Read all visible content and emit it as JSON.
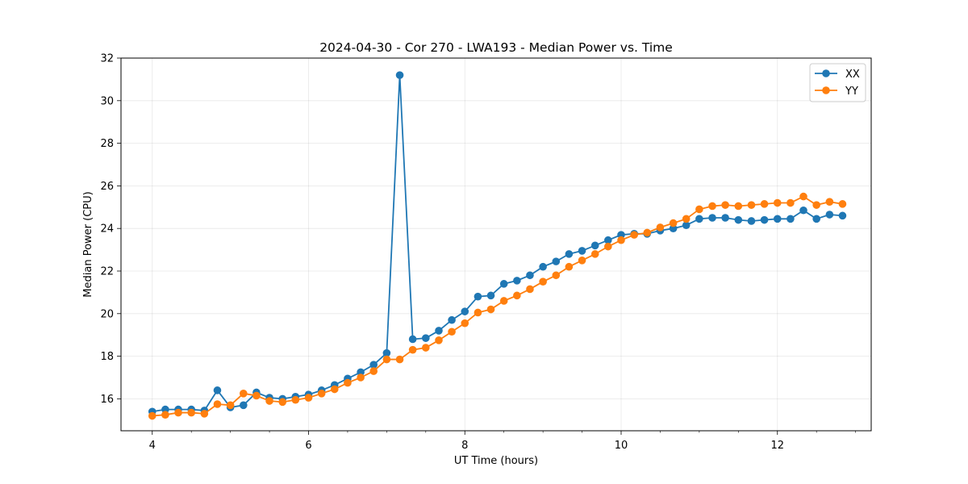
{
  "chart_data": {
    "type": "line",
    "title": "2024-04-30 - Cor 270 - LWA193 - Median Power vs. Time",
    "xlabel": "UT Time (hours)",
    "ylabel": "Median Power (CPU)",
    "xlim": [
      3.6,
      13.2
    ],
    "ylim": [
      14.5,
      32
    ],
    "xticks": [
      4,
      6,
      8,
      10,
      12
    ],
    "xtick_labels": [
      "4",
      "6",
      "8",
      "10",
      "12"
    ],
    "xminor_step": 0.5,
    "yticks": [
      16,
      18,
      20,
      22,
      24,
      26,
      28,
      30,
      32
    ],
    "ytick_labels": [
      "16",
      "18",
      "20",
      "22",
      "24",
      "26",
      "28",
      "30",
      "32"
    ],
    "grid": true,
    "legend_position": "top-right",
    "x": [
      4.0,
      4.167,
      4.333,
      4.5,
      4.667,
      4.833,
      5.0,
      5.167,
      5.333,
      5.5,
      5.667,
      5.833,
      6.0,
      6.167,
      6.333,
      6.5,
      6.667,
      6.833,
      7.0,
      7.167,
      7.333,
      7.5,
      7.667,
      7.833,
      8.0,
      8.167,
      8.333,
      8.5,
      8.667,
      8.833,
      9.0,
      9.167,
      9.333,
      9.5,
      9.667,
      9.833,
      10.0,
      10.167,
      10.333,
      10.5,
      10.667,
      10.833,
      11.0,
      11.167,
      11.333,
      11.5,
      11.667,
      11.833,
      12.0,
      12.167,
      12.333,
      12.5,
      12.667,
      12.833
    ],
    "series": [
      {
        "name": "XX",
        "color": "#1f77b4",
        "values": [
          15.4,
          15.5,
          15.5,
          15.5,
          15.45,
          16.4,
          15.6,
          15.7,
          16.3,
          16.05,
          16.0,
          16.1,
          16.2,
          16.4,
          16.65,
          16.95,
          17.25,
          17.6,
          18.15,
          31.2,
          18.8,
          18.85,
          19.2,
          19.7,
          20.1,
          20.8,
          20.85,
          21.4,
          21.55,
          21.8,
          22.2,
          22.45,
          22.8,
          22.95,
          23.2,
          23.45,
          23.7,
          23.75,
          23.75,
          23.9,
          24.0,
          24.15,
          24.45,
          24.5,
          24.5,
          24.4,
          24.35,
          24.4,
          24.45,
          24.45,
          24.85,
          24.45,
          24.65,
          24.6
        ]
      },
      {
        "name": "YY",
        "color": "#ff7f0e",
        "values": [
          15.2,
          15.25,
          15.35,
          15.35,
          15.3,
          15.75,
          15.7,
          16.25,
          16.15,
          15.9,
          15.85,
          15.95,
          16.05,
          16.25,
          16.45,
          16.75,
          17.0,
          17.3,
          17.85,
          17.85,
          18.3,
          18.4,
          18.75,
          19.15,
          19.55,
          20.05,
          20.2,
          20.6,
          20.85,
          21.15,
          21.5,
          21.8,
          22.2,
          22.5,
          22.8,
          23.15,
          23.45,
          23.7,
          23.8,
          24.05,
          24.25,
          24.45,
          24.9,
          25.05,
          25.1,
          25.05,
          25.1,
          25.15,
          25.2,
          25.2,
          25.5,
          25.1,
          25.25,
          25.15
        ]
      }
    ]
  }
}
